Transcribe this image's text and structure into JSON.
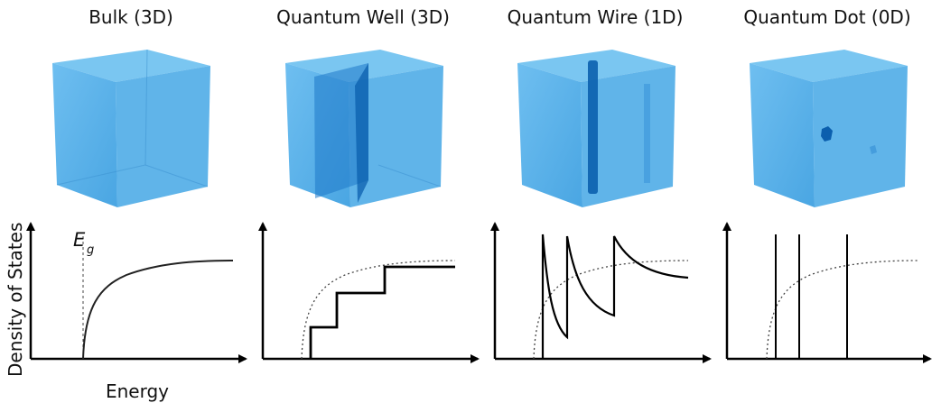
{
  "panels": [
    {
      "title": "Bulk (3D)"
    },
    {
      "title": "Quantum Well (3D)"
    },
    {
      "title": "Quantum Wire (1D)"
    },
    {
      "title": "Quantum Dot (0D)"
    }
  ],
  "axes": {
    "y_label": "Density of States",
    "x_label": "Energy",
    "gap_label": "E",
    "gap_subscript": "g"
  },
  "colors": {
    "cube_face": "#4aaae6",
    "cube_dark": "#0b5fae",
    "curve": "#222222",
    "axis": "#000000"
  }
}
